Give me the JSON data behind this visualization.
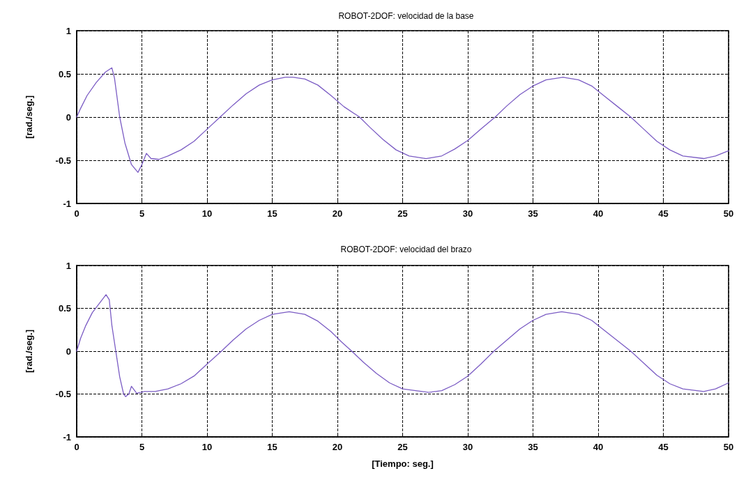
{
  "chart_data": [
    {
      "type": "line",
      "title": "ROBOT-2DOF: velocidad de la base",
      "ylabel": "[rad./seg.]",
      "xlim": [
        0,
        50
      ],
      "xticks": [
        0,
        5,
        10,
        15,
        20,
        25,
        30,
        35,
        40,
        45,
        50
      ],
      "ylim": [
        -1,
        1
      ],
      "yticks": [
        -1,
        -0.5,
        0,
        0.5,
        1
      ],
      "grid": true,
      "marker": "none",
      "line_style": "solid",
      "series": [
        {
          "color": "#7b5cc4",
          "x": [
            0,
            0.3,
            0.8,
            1.5,
            2.2,
            2.7,
            2.9,
            3.3,
            3.7,
            4.2,
            4.7,
            5.0,
            5.35,
            5.7,
            6.3,
            7,
            8,
            9,
            10,
            11,
            12,
            13,
            14,
            15,
            16,
            16.6,
            17.5,
            18.5,
            19.5,
            20.5,
            21.7,
            22.5,
            23.5,
            24.5,
            25.5,
            26.8,
            28,
            29,
            30,
            31,
            32.1,
            33,
            34,
            35,
            36,
            37.3,
            38.5,
            39.5,
            40.5,
            41.5,
            42.5,
            43.5,
            44.5,
            45.5,
            46.5,
            48.1,
            49,
            50
          ],
          "values": [
            0,
            0.1,
            0.25,
            0.4,
            0.52,
            0.57,
            0.45,
            0,
            -0.3,
            -0.55,
            -0.64,
            -0.55,
            -0.42,
            -0.48,
            -0.49,
            -0.45,
            -0.38,
            -0.28,
            -0.14,
            0,
            0.14,
            0.27,
            0.37,
            0.43,
            0.46,
            0.46,
            0.44,
            0.37,
            0.25,
            0.12,
            0,
            -0.12,
            -0.26,
            -0.38,
            -0.45,
            -0.48,
            -0.45,
            -0.37,
            -0.27,
            -0.14,
            0,
            0.13,
            0.26,
            0.36,
            0.43,
            0.46,
            0.43,
            0.36,
            0.24,
            0.12,
            0,
            -0.14,
            -0.28,
            -0.38,
            -0.45,
            -0.48,
            -0.45,
            -0.39
          ]
        }
      ]
    },
    {
      "type": "line",
      "title": "ROBOT-2DOF: velocidad del brazo",
      "ylabel": "[rad./seg.]",
      "xlabel": "[Tiempo: seg.]",
      "xlim": [
        0,
        50
      ],
      "xticks": [
        0,
        5,
        10,
        15,
        20,
        25,
        30,
        35,
        40,
        45,
        50
      ],
      "ylim": [
        -1,
        1
      ],
      "yticks": [
        -1,
        -0.5,
        0,
        0.5,
        1
      ],
      "grid": true,
      "marker": "none",
      "line_style": "solid",
      "series": [
        {
          "color": "#7b5cc4",
          "x": [
            0,
            0.3,
            0.7,
            1.2,
            1.7,
            2.25,
            2.5,
            2.7,
            3.0,
            3.3,
            3.6,
            3.75,
            4.0,
            4.2,
            4.6,
            5.2,
            6,
            7,
            8,
            9,
            10,
            11.1,
            12,
            13,
            14,
            15,
            16.3,
            17.5,
            18.5,
            19.5,
            20.3,
            21.1,
            22,
            23,
            24,
            25,
            27,
            28,
            29,
            30,
            31,
            32,
            33,
            34,
            35,
            36,
            37.2,
            38.5,
            39.5,
            40.5,
            41.5,
            42.5,
            43.5,
            44.5,
            45.5,
            46.5,
            48.1,
            49,
            50
          ],
          "values": [
            0,
            0.15,
            0.3,
            0.45,
            0.55,
            0.66,
            0.6,
            0.3,
            0,
            -0.3,
            -0.5,
            -0.53,
            -0.5,
            -0.41,
            -0.49,
            -0.47,
            -0.47,
            -0.44,
            -0.38,
            -0.29,
            -0.15,
            0,
            0.13,
            0.26,
            0.36,
            0.43,
            0.46,
            0.43,
            0.35,
            0.23,
            0.11,
            0,
            -0.13,
            -0.26,
            -0.37,
            -0.44,
            -0.48,
            -0.46,
            -0.39,
            -0.29,
            -0.15,
            0,
            0.13,
            0.26,
            0.36,
            0.43,
            0.46,
            0.43,
            0.36,
            0.24,
            0.12,
            0,
            -0.14,
            -0.28,
            -0.38,
            -0.44,
            -0.47,
            -0.44,
            -0.37
          ]
        }
      ]
    }
  ]
}
